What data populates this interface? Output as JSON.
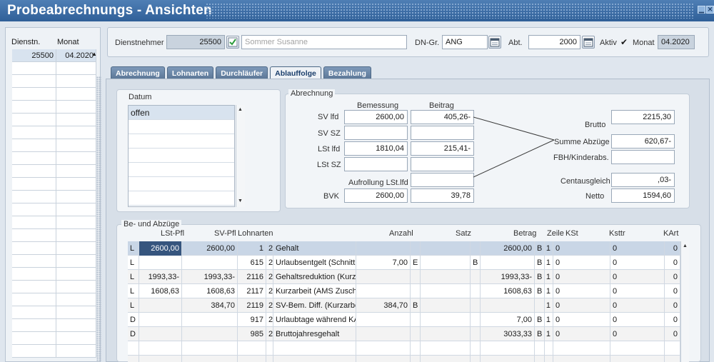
{
  "window": {
    "title": "Probeabrechnungs - Ansichten"
  },
  "left_list": {
    "headers": [
      "Dienstn.",
      "Monat"
    ],
    "rows": [
      [
        "25500",
        "04.2020"
      ]
    ]
  },
  "header": {
    "dienstnehmer_label": "Dienstnehmer",
    "dienstnehmer_id": "25500",
    "dienstnehmer_name_placeholder": "Sommer Susanne",
    "dngr_label": "DN-Gr.",
    "dngr_value": "ANG",
    "abt_label": "Abt.",
    "abt_value": "2000",
    "aktiv_label": "Aktiv",
    "aktiv_checked": true,
    "monat_label": "Monat",
    "monat_value": "04.2020"
  },
  "tabs": [
    {
      "label": "Abrechnung",
      "active": false
    },
    {
      "label": "Lohnarten",
      "active": false
    },
    {
      "label": "Durchläufer",
      "active": false
    },
    {
      "label": "Ablauffolge",
      "active": true
    },
    {
      "label": "Bezahlung",
      "active": false
    }
  ],
  "datum": {
    "title": "Datum",
    "items": [
      "offen"
    ]
  },
  "abrechnung": {
    "title": "Abrechnung",
    "col_bemessung": "Bemessung",
    "col_beitrag": "Beitrag",
    "rows": [
      {
        "label": "SV lfd",
        "bemessung": "2600,00",
        "beitrag": "405,26-"
      },
      {
        "label": "SV SZ",
        "bemessung": "",
        "beitrag": ""
      },
      {
        "label": "LSt lfd",
        "bemessung": "1810,04",
        "beitrag": "215,41-"
      },
      {
        "label": "LSt SZ",
        "bemessung": "",
        "beitrag": ""
      }
    ],
    "aufrollung_label": "Aufrollung LSt.lfd",
    "aufrollung_value": "",
    "bvk_label": "BVK",
    "bvk_bemessung": "2600,00",
    "bvk_beitrag": "39,78",
    "brutto_label": "Brutto",
    "brutto_value": "2215,30",
    "summe_label": "Summe Abzüge",
    "summe_value": "620,67-",
    "fbh_label": "FBH/Kinderabs.",
    "fbh_value": "",
    "cent_label": "Centausgleich",
    "cent_value": ",03-",
    "netto_label": "Netto",
    "netto_value": "1594,60"
  },
  "abzuege": {
    "title": "Be- und Abzüge",
    "headers": {
      "lstpfl": "LSt-Pfl",
      "svpfl": "SV-Pfl",
      "lohnarten": "Lohnarten",
      "anzahl": "Anzahl",
      "satz": "Satz",
      "betrag": "Betrag",
      "zeile": "Zeile",
      "kst": "KSt",
      "ksttr": "Ksttr",
      "kart": "KArt"
    },
    "rows": [
      {
        "typ": "L",
        "lstpfl": "2600,00",
        "svpfl": "2600,00",
        "nr": "1",
        "code": "2",
        "text": "Gehalt",
        "anzahl": "",
        "e": "",
        "satz": "",
        "b": "",
        "betrag": "2600,00",
        "bb": "B",
        "zeile": "1",
        "kst": "0",
        "ksttr": "0",
        "kart": "0"
      },
      {
        "typ": "L",
        "lstpfl": "",
        "svpfl": "",
        "nr": "615",
        "code": "2",
        "text": "Urlaubsentgelt (Schnitt",
        "anzahl": "7,00",
        "e": "E",
        "satz": "",
        "b": "B",
        "betrag": "",
        "bb": "B",
        "zeile": "1",
        "kst": "0",
        "ksttr": "0",
        "kart": "0"
      },
      {
        "typ": "L",
        "lstpfl": "1993,33-",
        "svpfl": "1993,33-",
        "nr": "2116",
        "code": "2",
        "text": "Gehaltsreduktion (Kurz",
        "anzahl": "",
        "e": "",
        "satz": "",
        "b": "",
        "betrag": "1993,33-",
        "bb": "B",
        "zeile": "1",
        "kst": "0",
        "ksttr": "0",
        "kart": "0"
      },
      {
        "typ": "L",
        "lstpfl": "1608,63",
        "svpfl": "1608,63",
        "nr": "2117",
        "code": "2",
        "text": "Kurzarbeit (AMS Zusch",
        "anzahl": "",
        "e": "",
        "satz": "",
        "b": "",
        "betrag": "1608,63",
        "bb": "B",
        "zeile": "1",
        "kst": "0",
        "ksttr": "0",
        "kart": "0"
      },
      {
        "typ": "L",
        "lstpfl": "",
        "svpfl": "384,70",
        "nr": "2119",
        "code": "2",
        "text": "SV-Bem. Diff. (Kurzarbe",
        "anzahl": "384,70",
        "e": "B",
        "satz": "",
        "b": "",
        "betrag": "",
        "bb": "",
        "zeile": "1",
        "kst": "0",
        "ksttr": "0",
        "kart": "0"
      },
      {
        "typ": "D",
        "lstpfl": "",
        "svpfl": "",
        "nr": "917",
        "code": "2",
        "text": "Urlaubtage während KA",
        "anzahl": "",
        "e": "",
        "satz": "",
        "b": "",
        "betrag": "7,00",
        "bb": "B",
        "zeile": "1",
        "kst": "0",
        "ksttr": "0",
        "kart": "0"
      },
      {
        "typ": "D",
        "lstpfl": "",
        "svpfl": "",
        "nr": "985",
        "code": "2",
        "text": "Bruttojahresgehalt",
        "anzahl": "",
        "e": "",
        "satz": "",
        "b": "",
        "betrag": "3033,33",
        "bb": "B",
        "zeile": "1",
        "kst": "0",
        "ksttr": "0",
        "kart": "0"
      }
    ]
  },
  "icons": {
    "confirm": "check-icon",
    "calendar": "calendar-icon",
    "minimize": "minimize-icon",
    "close": "close-icon"
  }
}
